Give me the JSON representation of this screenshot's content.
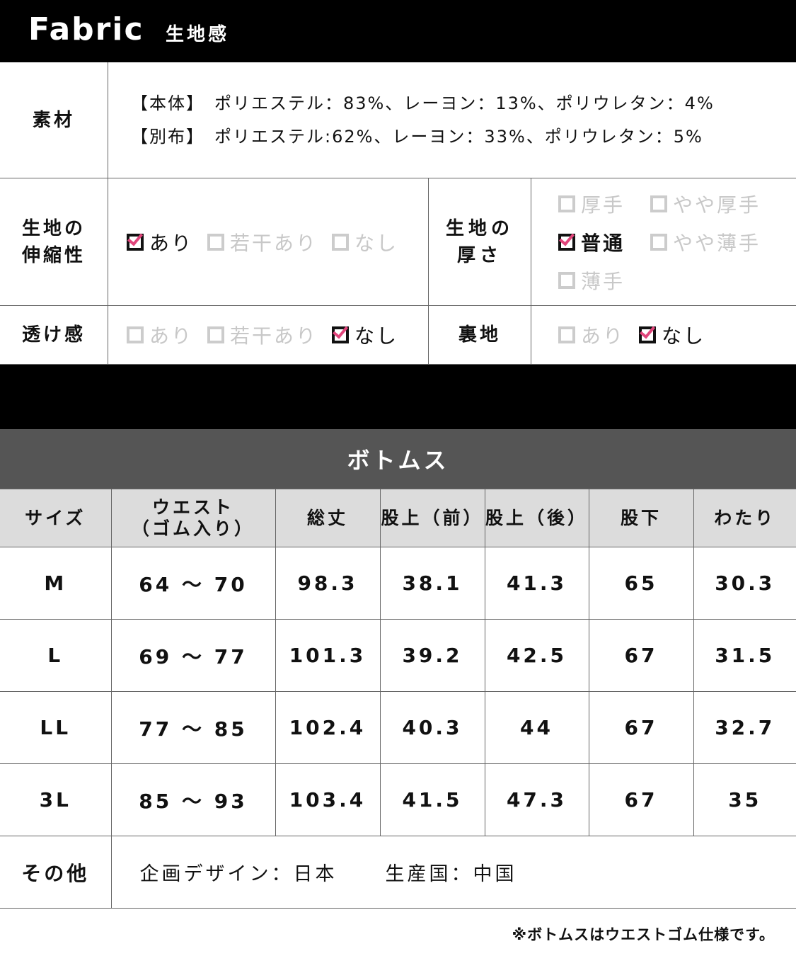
{
  "header": {
    "title_en": "Fabric",
    "title_jp": "生地感"
  },
  "fabric": {
    "material": {
      "label": "素材",
      "lines": [
        "【本体】　ポリエステル：83%、レーヨン：13%、ポリウレタン：4%",
        "【別布】　ポリエステル:62%、レーヨン：33%、ポリウレタン：5%"
      ]
    },
    "stretch": {
      "label": "生地の伸縮性",
      "options": [
        {
          "label": "あり",
          "checked": true
        },
        {
          "label": "若干あり",
          "checked": false
        },
        {
          "label": "なし",
          "checked": false
        }
      ]
    },
    "thickness": {
      "label": "生地の厚さ",
      "options": [
        {
          "label": "厚手",
          "checked": false
        },
        {
          "label": "やや厚手",
          "checked": false
        },
        {
          "label": "普通",
          "checked": true
        },
        {
          "label": "やや薄手",
          "checked": false
        },
        {
          "label": "薄手",
          "checked": false
        }
      ]
    },
    "sheer": {
      "label": "透け感",
      "options": [
        {
          "label": "あり",
          "checked": false
        },
        {
          "label": "若干あり",
          "checked": false
        },
        {
          "label": "なし",
          "checked": true
        }
      ]
    },
    "lining": {
      "label": "裏地",
      "options": [
        {
          "label": "あり",
          "checked": false
        },
        {
          "label": "なし",
          "checked": true
        }
      ]
    }
  },
  "colors": {
    "check": "#e0457b",
    "section_header": "#555555",
    "table_header": "#dcdcdc"
  },
  "size_table": {
    "title": "ボトムス",
    "headers": [
      "サイズ",
      "ウエスト（ゴム入り）",
      "総丈",
      "股上（前）",
      "股上（後）",
      "股下",
      "わたり"
    ],
    "waist_header": [
      "ウエスト",
      "（ゴム入り）"
    ],
    "rows": [
      [
        "M",
        "64 ～ 70",
        "98.3",
        "38.1",
        "41.3",
        "65",
        "30.3"
      ],
      [
        "L",
        "69 ～ 77",
        "101.3",
        "39.2",
        "42.5",
        "67",
        "31.5"
      ],
      [
        "LL",
        "77 ～ 85",
        "102.4",
        "40.3",
        "44",
        "67",
        "32.7"
      ],
      [
        "3L",
        "85 ～ 93",
        "103.4",
        "41.5",
        "47.3",
        "67",
        "35"
      ]
    ],
    "other": {
      "label": "その他",
      "design": "企画デザイン：日本",
      "origin": "生産国：中国"
    }
  },
  "note": "※ボトムスはウエストゴム仕様です。"
}
